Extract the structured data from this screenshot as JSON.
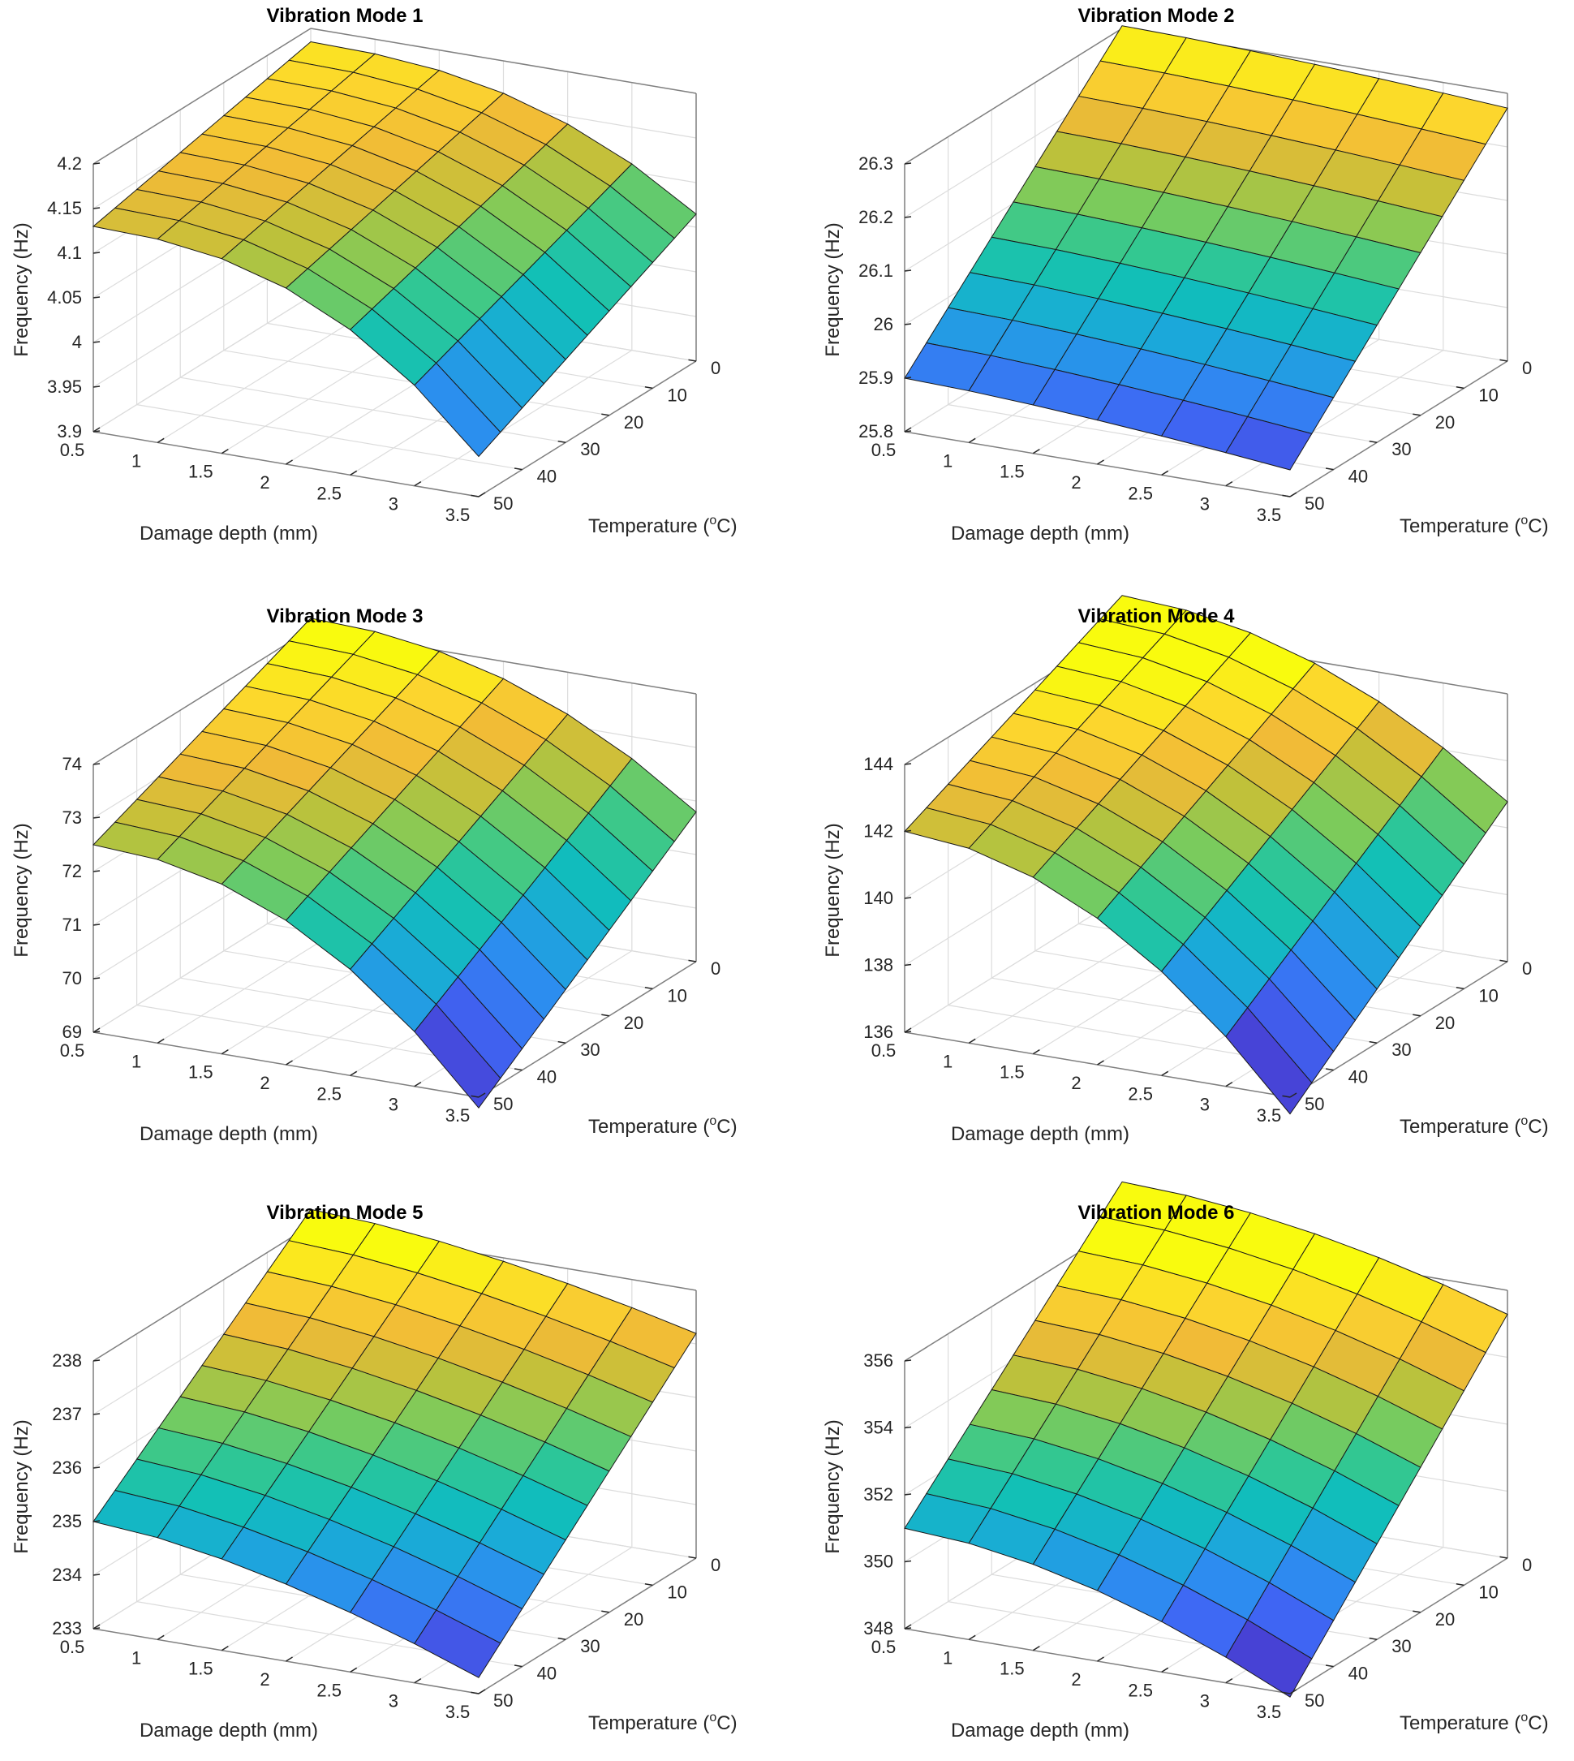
{
  "chart_data": [
    {
      "type": "surface",
      "title": "Vibration Mode 1",
      "xlabel": "Damage depth (mm)",
      "ylabel_main": "Temperature (",
      "ylabel_sup": "o",
      "ylabel_end": "C)",
      "zlabel": "Frequency (Hz)",
      "x_ticks": [
        "0.5",
        "1",
        "1.5",
        "2",
        "2.5",
        "3",
        "3.5"
      ],
      "y_ticks": [
        "0",
        "10",
        "20",
        "30",
        "40",
        "50"
      ],
      "z_ticks": [
        "3.9",
        "3.95",
        "4",
        "4.05",
        "4.1",
        "4.15",
        "4.2"
      ],
      "zlim": [
        3.9,
        4.2
      ],
      "x_range": [
        0.5,
        3.5
      ],
      "y_range": [
        0,
        50
      ],
      "surface": {
        "n_x": 7,
        "n_y": 11,
        "f_base": 4.185,
        "temp_drop": 0.055,
        "damage_drop": 0.185,
        "damage_power": 2.5
      },
      "colors": {
        "low": "#3e4aa8",
        "high": "#f2e621"
      }
    },
    {
      "type": "surface",
      "title": "Vibration Mode 2",
      "xlabel": "Damage depth (mm)",
      "ylabel_main": "Temperature (",
      "ylabel_sup": "o",
      "ylabel_end": "C)",
      "zlabel": "Frequency (Hz)",
      "x_ticks": [
        "0.5",
        "1",
        "1.5",
        "2",
        "2.5",
        "3",
        "3.5"
      ],
      "y_ticks": [
        "0",
        "10",
        "20",
        "30",
        "40",
        "50"
      ],
      "z_ticks": [
        "25.8",
        "25.9",
        "26",
        "26.1",
        "26.2",
        "26.3"
      ],
      "zlim": [
        25.8,
        26.3
      ],
      "x_range": [
        0.5,
        3.5
      ],
      "y_range": [
        0,
        50
      ],
      "surface": {
        "n_x": 7,
        "n_y": 11,
        "f_base": 26.305,
        "temp_drop": 0.405,
        "damage_drop": 0.05,
        "damage_power": 1.5
      },
      "colors": {
        "low": "#3e4aa8",
        "high": "#f2e621"
      }
    },
    {
      "type": "surface",
      "title": "Vibration Mode 3",
      "xlabel": "Damage depth (mm)",
      "ylabel_main": "Temperature (",
      "ylabel_sup": "o",
      "ylabel_end": "C)",
      "zlabel": "Frequency (Hz)",
      "x_ticks": [
        "0.5",
        "1",
        "1.5",
        "2",
        "2.5",
        "3",
        "3.5"
      ],
      "y_ticks": [
        "0",
        "10",
        "20",
        "30",
        "40",
        "50"
      ],
      "z_ticks": [
        "69",
        "70",
        "71",
        "72",
        "73",
        "74"
      ],
      "zlim": [
        69,
        74
      ],
      "x_range": [
        0.5,
        3.5
      ],
      "y_range": [
        0,
        50
      ],
      "surface": {
        "n_x": 7,
        "n_y": 11,
        "f_base": 74.2,
        "temp_drop": 1.7,
        "damage_drop": 3.7,
        "damage_power": 2.2
      },
      "colors": {
        "low": "#3e4aa8",
        "high": "#f2e621"
      }
    },
    {
      "type": "surface",
      "title": "Vibration Mode 4",
      "xlabel": "Damage depth (mm)",
      "ylabel_main": "Temperature (",
      "ylabel_sup": "o",
      "ylabel_end": "C)",
      "zlabel": "Frequency (Hz)",
      "x_ticks": [
        "0.5",
        "1",
        "1.5",
        "2",
        "2.5",
        "3",
        "3.5"
      ],
      "y_ticks": [
        "0",
        "10",
        "20",
        "30",
        "40",
        "50"
      ],
      "z_ticks": [
        "136",
        "138",
        "140",
        "142",
        "144"
      ],
      "zlim": [
        136,
        144
      ],
      "x_range": [
        0.5,
        3.5
      ],
      "y_range": [
        0,
        50
      ],
      "surface": {
        "n_x": 7,
        "n_y": 11,
        "f_base": 145.0,
        "temp_drop": 3.0,
        "damage_drop": 6.5,
        "damage_power": 2.0
      },
      "colors": {
        "low": "#3e4aa8",
        "high": "#f2e621"
      }
    },
    {
      "type": "surface",
      "title": "Vibration Mode 5",
      "xlabel": "Damage depth (mm)",
      "ylabel_main": "Temperature (",
      "ylabel_sup": "o",
      "ylabel_end": "C)",
      "zlabel": "Frequency (Hz)",
      "x_ticks": [
        "0.5",
        "1",
        "1.5",
        "2",
        "2.5",
        "3",
        "3.5"
      ],
      "y_ticks": [
        "0",
        "10",
        "20",
        "30",
        "40",
        "50"
      ],
      "z_ticks": [
        "233",
        "234",
        "235",
        "236",
        "237",
        "238"
      ],
      "zlim": [
        233,
        238
      ],
      "x_range": [
        0.5,
        3.5
      ],
      "y_range": [
        0,
        50
      ],
      "surface": {
        "n_x": 7,
        "n_y": 11,
        "f_base": 238.3,
        "temp_drop": 3.3,
        "damage_drop": 1.7,
        "damage_power": 1.6
      },
      "colors": {
        "low": "#3e4aa8",
        "high": "#f2e621"
      }
    },
    {
      "type": "surface",
      "title": "Vibration Mode 6",
      "xlabel": "Damage depth (mm)",
      "ylabel_main": "Temperature (",
      "ylabel_sup": "o",
      "ylabel_end": "C)",
      "zlabel": "Frequency (Hz)",
      "x_ticks": [
        "0.5",
        "1",
        "1.5",
        "2",
        "2.5",
        "3",
        "3.5"
      ],
      "y_ticks": [
        "0",
        "10",
        "20",
        "30",
        "40",
        "50"
      ],
      "z_ticks": [
        "348",
        "350",
        "352",
        "354",
        "356"
      ],
      "zlim": [
        348,
        356
      ],
      "x_range": [
        0.5,
        3.5
      ],
      "y_range": [
        0,
        50
      ],
      "surface": {
        "n_x": 7,
        "n_y": 11,
        "f_base": 357.3,
        "temp_drop": 6.3,
        "damage_drop": 3.1,
        "damage_power": 1.8
      },
      "colors": {
        "low": "#3e4aa8",
        "high": "#f2e621"
      }
    }
  ]
}
